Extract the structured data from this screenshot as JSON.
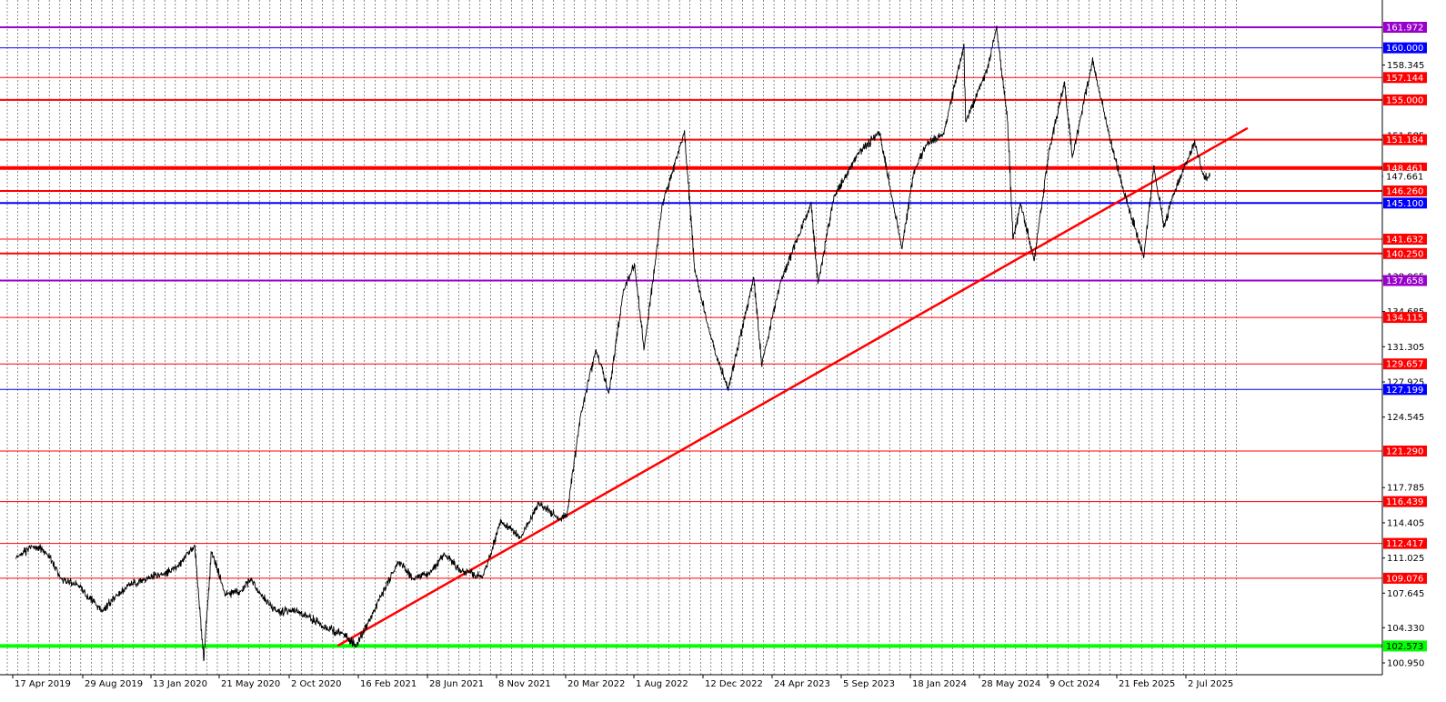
{
  "chart_data": {
    "type": "line",
    "title": "",
    "xlabel": "",
    "ylabel": "",
    "ylim": [
      100.0,
      163.2
    ],
    "background": "#ffffff",
    "price_color": "#000000",
    "grid": "vertical-dotted",
    "x_tick_labels": [
      "17 Apr 2019",
      "29 Aug 2019",
      "13 Jan 2020",
      "21 May 2020",
      "2 Oct 2020",
      "16 Feb 2021",
      "28 Jun 2021",
      "8 Nov 2021",
      "20 Mar 2022",
      "1 Aug 2022",
      "12 Dec 2022",
      "24 Apr 2023",
      "5 Sep 2023",
      "18 Jan 2024",
      "28 May 2024",
      "9 Oct 2024",
      "21 Feb 2025",
      "2 Jul 2025"
    ],
    "y_tick_labels": [
      "158.345",
      "151.585",
      "147.661",
      "138.065",
      "134.685",
      "131.305",
      "127.925",
      "124.545",
      "117.785",
      "114.405",
      "111.025",
      "107.645",
      "104.330",
      "100.950"
    ],
    "horizontal_levels": [
      {
        "value": 161.972,
        "label": "161.972",
        "color": "#9900cc",
        "weight": "medium"
      },
      {
        "value": 160.0,
        "label": "160.000",
        "color": "#0000ff",
        "weight": "thin"
      },
      {
        "value": 157.144,
        "label": "157.144",
        "color": "#ff0000",
        "weight": "thin"
      },
      {
        "value": 155.0,
        "label": "155.000",
        "color": "#ff0000",
        "weight": "medium"
      },
      {
        "value": 151.184,
        "label": "151.184",
        "color": "#ff0000",
        "weight": "medium"
      },
      {
        "value": 148.461,
        "label": "148.461",
        "color": "#ff0000",
        "weight": "thick"
      },
      {
        "value": 146.26,
        "label": "146.260",
        "color": "#ff0000",
        "weight": "medium"
      },
      {
        "value": 145.1,
        "label": "145.100",
        "color": "#0000ff",
        "weight": "medium"
      },
      {
        "value": 141.632,
        "label": "141.632",
        "color": "#ff0000",
        "weight": "thin"
      },
      {
        "value": 140.25,
        "label": "140.250",
        "color": "#ff0000",
        "weight": "medium"
      },
      {
        "value": 137.658,
        "label": "137.658",
        "color": "#9900cc",
        "weight": "medium"
      },
      {
        "value": 134.115,
        "label": "134.115",
        "color": "#ff0000",
        "weight": "thin"
      },
      {
        "value": 129.657,
        "label": "129.657",
        "color": "#ff0000",
        "weight": "thin"
      },
      {
        "value": 127.199,
        "label": "127.199",
        "color": "#0000ff",
        "weight": "thin"
      },
      {
        "value": 121.29,
        "label": "121.290",
        "color": "#ff0000",
        "weight": "thin"
      },
      {
        "value": 116.439,
        "label": "116.439",
        "color": "#ff0000",
        "weight": "thin"
      },
      {
        "value": 112.417,
        "label": "112.417",
        "color": "#ff0000",
        "weight": "thin"
      },
      {
        "value": 109.076,
        "label": "109.076",
        "color": "#ff0000",
        "weight": "thin"
      },
      {
        "value": 102.573,
        "label": "102.573",
        "color": "#00ff00",
        "weight": "thick"
      }
    ],
    "current_price": {
      "value": 147.661,
      "label": "147.661",
      "color": "#000000"
    },
    "trendline": {
      "color": "#ff0000",
      "points": [
        {
          "x": "2020-12-01",
          "y": 102.6
        },
        {
          "x": "2025-11-15",
          "y": 152.3
        }
      ]
    },
    "series": [
      {
        "values": [
          {
            "x": "2019-03-01",
            "y": 111.0
          },
          {
            "x": "2019-04-05",
            "y": 112.2
          },
          {
            "x": "2019-05-01",
            "y": 111.6
          },
          {
            "x": "2019-06-01",
            "y": 108.9
          },
          {
            "x": "2019-07-01",
            "y": 108.5
          },
          {
            "x": "2019-08-20",
            "y": 105.9
          },
          {
            "x": "2019-09-15",
            "y": 107.3
          },
          {
            "x": "2019-10-15",
            "y": 108.5
          },
          {
            "x": "2019-11-15",
            "y": 109.0
          },
          {
            "x": "2019-12-20",
            "y": 109.5
          },
          {
            "x": "2020-01-15",
            "y": 110.1
          },
          {
            "x": "2020-02-20",
            "y": 112.2
          },
          {
            "x": "2020-03-09",
            "y": 101.2
          },
          {
            "x": "2020-03-24",
            "y": 111.7
          },
          {
            "x": "2020-04-20",
            "y": 107.6
          },
          {
            "x": "2020-05-20",
            "y": 107.8
          },
          {
            "x": "2020-06-10",
            "y": 109.0
          },
          {
            "x": "2020-07-01",
            "y": 107.5
          },
          {
            "x": "2020-08-01",
            "y": 105.8
          },
          {
            "x": "2020-09-01",
            "y": 106.0
          },
          {
            "x": "2020-10-01",
            "y": 105.5
          },
          {
            "x": "2020-11-01",
            "y": 104.4
          },
          {
            "x": "2020-12-15",
            "y": 103.6
          },
          {
            "x": "2021-01-06",
            "y": 102.6
          },
          {
            "x": "2021-02-01",
            "y": 105.0
          },
          {
            "x": "2021-03-31",
            "y": 110.7
          },
          {
            "x": "2021-05-01",
            "y": 109.0
          },
          {
            "x": "2021-06-01",
            "y": 109.6
          },
          {
            "x": "2021-07-01",
            "y": 111.4
          },
          {
            "x": "2021-08-01",
            "y": 109.8
          },
          {
            "x": "2021-09-15",
            "y": 109.2
          },
          {
            "x": "2021-10-20",
            "y": 114.5
          },
          {
            "x": "2021-11-30",
            "y": 113.0
          },
          {
            "x": "2022-01-04",
            "y": 116.3
          },
          {
            "x": "2022-02-15",
            "y": 114.8
          },
          {
            "x": "2022-03-01",
            "y": 115.0
          },
          {
            "x": "2022-03-28",
            "y": 124.5
          },
          {
            "x": "2022-04-28",
            "y": 131.0
          },
          {
            "x": "2022-05-24",
            "y": 126.9
          },
          {
            "x": "2022-06-22",
            "y": 136.7
          },
          {
            "x": "2022-07-14",
            "y": 139.3
          },
          {
            "x": "2022-08-02",
            "y": 131.0
          },
          {
            "x": "2022-09-07",
            "y": 144.9
          },
          {
            "x": "2022-10-21",
            "y": 151.9
          },
          {
            "x": "2022-11-11",
            "y": 138.5
          },
          {
            "x": "2022-12-20",
            "y": 131.0
          },
          {
            "x": "2023-01-16",
            "y": 127.2
          },
          {
            "x": "2023-03-08",
            "y": 137.9
          },
          {
            "x": "2023-03-24",
            "y": 129.6
          },
          {
            "x": "2023-05-01",
            "y": 137.6
          },
          {
            "x": "2023-06-30",
            "y": 145.0
          },
          {
            "x": "2023-07-14",
            "y": 137.3
          },
          {
            "x": "2023-08-15",
            "y": 145.8
          },
          {
            "x": "2023-10-01",
            "y": 149.8
          },
          {
            "x": "2023-11-13",
            "y": 151.9
          },
          {
            "x": "2023-12-28",
            "y": 140.8
          },
          {
            "x": "2024-01-20",
            "y": 148.0
          },
          {
            "x": "2024-02-15",
            "y": 150.8
          },
          {
            "x": "2024-03-20",
            "y": 151.8
          },
          {
            "x": "2024-04-29",
            "y": 160.2
          },
          {
            "x": "2024-05-03",
            "y": 152.9
          },
          {
            "x": "2024-06-15",
            "y": 158.0
          },
          {
            "x": "2024-07-03",
            "y": 161.9
          },
          {
            "x": "2024-07-25",
            "y": 153.0
          },
          {
            "x": "2024-08-05",
            "y": 141.7
          },
          {
            "x": "2024-08-20",
            "y": 145.0
          },
          {
            "x": "2024-09-16",
            "y": 139.6
          },
          {
            "x": "2024-10-15",
            "y": 150.0
          },
          {
            "x": "2024-11-15",
            "y": 156.7
          },
          {
            "x": "2024-12-01",
            "y": 149.5
          },
          {
            "x": "2025-01-10",
            "y": 158.8
          },
          {
            "x": "2025-02-10",
            "y": 152.0
          },
          {
            "x": "2025-03-11",
            "y": 146.6
          },
          {
            "x": "2025-04-22",
            "y": 139.9
          },
          {
            "x": "2025-05-12",
            "y": 148.6
          },
          {
            "x": "2025-06-01",
            "y": 142.8
          },
          {
            "x": "2025-06-20",
            "y": 146.0
          },
          {
            "x": "2025-07-16",
            "y": 149.0
          },
          {
            "x": "2025-08-01",
            "y": 150.9
          },
          {
            "x": "2025-08-20",
            "y": 147.6
          },
          {
            "x": "2025-09-01",
            "y": 147.66
          }
        ]
      }
    ]
  }
}
